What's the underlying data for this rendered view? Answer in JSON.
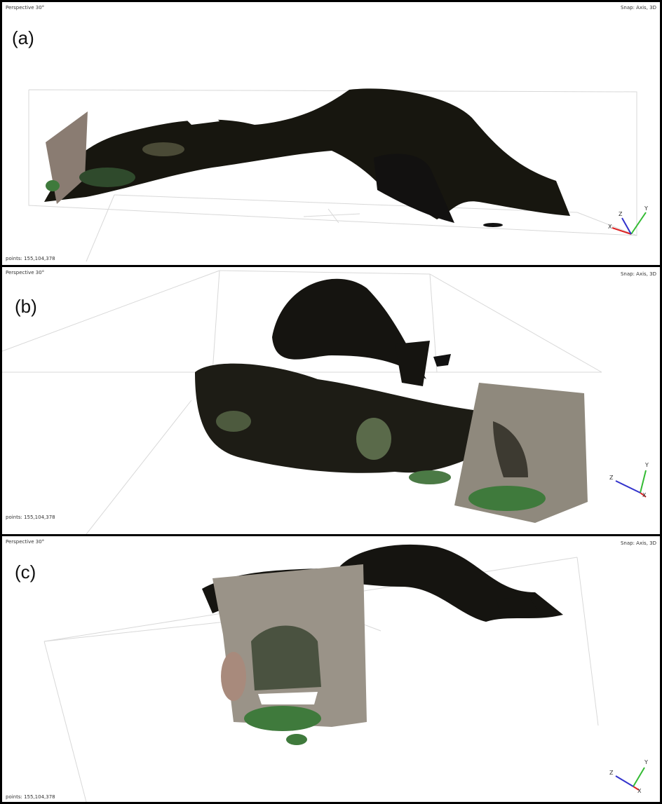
{
  "panels": [
    {
      "label": "(a)",
      "view": "Perspective 30°",
      "snap": "Snap: Axis, 3D",
      "points": "points: 155,104,378",
      "axes": {
        "x": "X",
        "y": "Y",
        "z": "Z"
      }
    },
    {
      "label": "(b)",
      "view": "Perspective 30°",
      "snap": "Snap: Axis, 3D",
      "points": "points: 155,104,378",
      "axes": {
        "x": "X",
        "y": "Y",
        "z": "Z"
      }
    },
    {
      "label": "(c)",
      "view": "Perspective 30°",
      "snap": "Snap: Axis, 3D",
      "points": "points: 155,104,378",
      "axes": {
        "x": "X",
        "y": "Y",
        "z": "Z"
      }
    }
  ]
}
